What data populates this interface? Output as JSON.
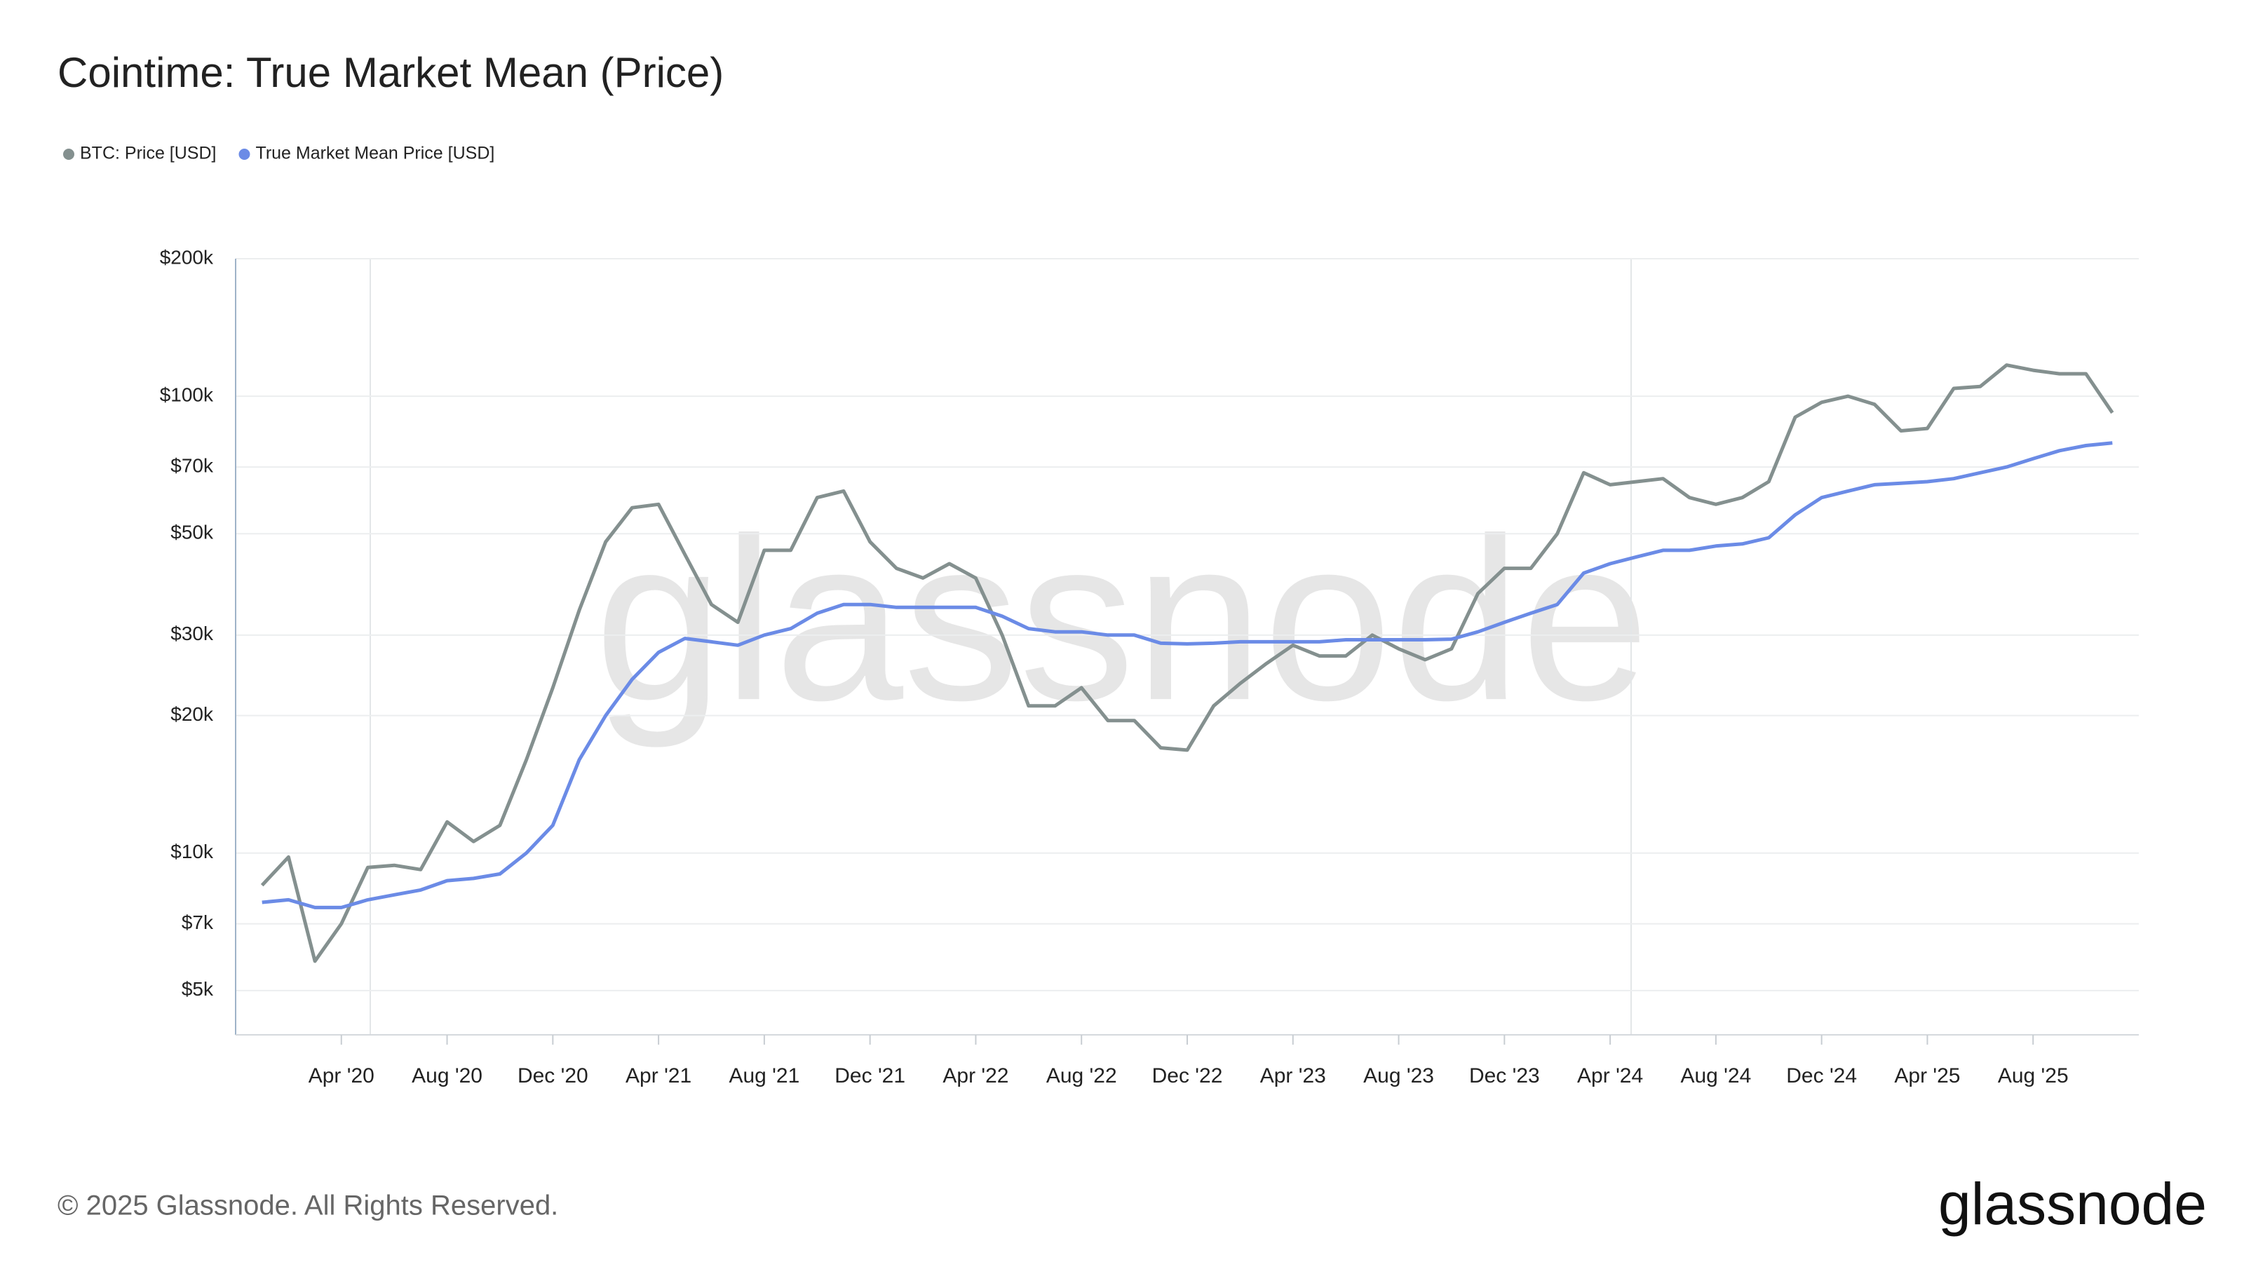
{
  "chart_data": {
    "type": "line",
    "title": "Cointime: True Market Mean (Price)",
    "watermark": "glassnode",
    "copyright": "© 2025 Glassnode. All Rights Reserved.",
    "brand": "glassnode",
    "log_y": true,
    "grid": true,
    "legend": "top-left",
    "x": [
      "2020-01",
      "2020-02",
      "2020-03",
      "2020-04",
      "2020-05",
      "2020-06",
      "2020-07",
      "2020-08",
      "2020-09",
      "2020-10",
      "2020-11",
      "2020-12",
      "2021-01",
      "2021-02",
      "2021-03",
      "2021-04",
      "2021-05",
      "2021-06",
      "2021-07",
      "2021-08",
      "2021-09",
      "2021-10",
      "2021-11",
      "2021-12",
      "2022-01",
      "2022-02",
      "2022-03",
      "2022-04",
      "2022-05",
      "2022-06",
      "2022-07",
      "2022-08",
      "2022-09",
      "2022-10",
      "2022-11",
      "2022-12",
      "2023-01",
      "2023-02",
      "2023-03",
      "2023-04",
      "2023-05",
      "2023-06",
      "2023-07",
      "2023-08",
      "2023-09",
      "2023-10",
      "2023-11",
      "2023-12",
      "2024-01",
      "2024-02",
      "2024-03",
      "2024-04",
      "2024-05",
      "2024-06",
      "2024-07",
      "2024-08",
      "2024-09",
      "2024-10",
      "2024-11",
      "2024-12",
      "2025-01",
      "2025-02",
      "2025-03",
      "2025-04",
      "2025-05",
      "2025-06",
      "2025-07",
      "2025-08",
      "2025-09",
      "2025-10",
      "2025-11"
    ],
    "series": [
      {
        "name": "BTC: Price [USD]",
        "color": "#84908f",
        "values": [
          8500,
          9800,
          5800,
          7000,
          9300,
          9400,
          9200,
          11700,
          10600,
          11500,
          16000,
          23000,
          34000,
          48000,
          57000,
          58000,
          45000,
          35000,
          32000,
          46000,
          46000,
          60000,
          62000,
          48000,
          42000,
          40000,
          43000,
          40000,
          30000,
          21000,
          21000,
          23000,
          19500,
          19500,
          17000,
          16800,
          21000,
          23500,
          26000,
          28500,
          27000,
          27000,
          30000,
          28000,
          26500,
          28000,
          37000,
          42000,
          42000,
          50000,
          68000,
          64000,
          65000,
          66000,
          60000,
          58000,
          60000,
          65000,
          90000,
          97000,
          100000,
          96000,
          84000,
          85000,
          104000,
          105000,
          117000,
          114000,
          112000,
          112000,
          92000
        ]
      },
      {
        "name": "True Market Mean Price [USD]",
        "color": "#6b8be6",
        "values": [
          7800,
          7900,
          7600,
          7600,
          7900,
          8100,
          8300,
          8700,
          8800,
          9000,
          10000,
          11500,
          16000,
          20000,
          24000,
          27500,
          29500,
          29000,
          28500,
          30000,
          31000,
          33500,
          35000,
          35000,
          34500,
          34500,
          34500,
          34500,
          33000,
          31000,
          30500,
          30500,
          30000,
          30000,
          28800,
          28700,
          28800,
          29000,
          29000,
          29000,
          29000,
          29300,
          29300,
          29300,
          29300,
          29400,
          30500,
          32000,
          33500,
          35000,
          41000,
          43000,
          44500,
          46000,
          46000,
          47000,
          47500,
          49000,
          55000,
          60000,
          62000,
          64000,
          64500,
          65000,
          66000,
          68000,
          70000,
          73000,
          76000,
          78000,
          79000
        ]
      }
    ],
    "xlim": [
      "2019-12",
      "2025-12"
    ],
    "xticks": [
      {
        "value": "2020-04",
        "label": "Apr '20"
      },
      {
        "value": "2020-08",
        "label": "Aug '20"
      },
      {
        "value": "2020-12",
        "label": "Dec '20"
      },
      {
        "value": "2021-04",
        "label": "Apr '21"
      },
      {
        "value": "2021-08",
        "label": "Aug '21"
      },
      {
        "value": "2021-12",
        "label": "Dec '21"
      },
      {
        "value": "2022-04",
        "label": "Apr '22"
      },
      {
        "value": "2022-08",
        "label": "Aug '22"
      },
      {
        "value": "2022-12",
        "label": "Dec '22"
      },
      {
        "value": "2023-04",
        "label": "Apr '23"
      },
      {
        "value": "2023-08",
        "label": "Aug '23"
      },
      {
        "value": "2023-12",
        "label": "Dec '23"
      },
      {
        "value": "2024-04",
        "label": "Apr '24"
      },
      {
        "value": "2024-08",
        "label": "Aug '24"
      },
      {
        "value": "2024-12",
        "label": "Dec '24"
      },
      {
        "value": "2025-04",
        "label": "Apr '25"
      },
      {
        "value": "2025-08",
        "label": "Aug '25"
      }
    ],
    "ylim": [
      4000,
      200000
    ],
    "yticks": [
      {
        "value": 5000,
        "label": "$5k"
      },
      {
        "value": 7000,
        "label": "$7k"
      },
      {
        "value": 10000,
        "label": "$10k"
      },
      {
        "value": 20000,
        "label": "$20k"
      },
      {
        "value": 30000,
        "label": "$30k"
      },
      {
        "value": 50000,
        "label": "$50k"
      },
      {
        "value": 70000,
        "label": "$70k"
      },
      {
        "value": 100000,
        "label": "$100k"
      },
      {
        "value": 200000,
        "label": "$200k"
      }
    ]
  }
}
